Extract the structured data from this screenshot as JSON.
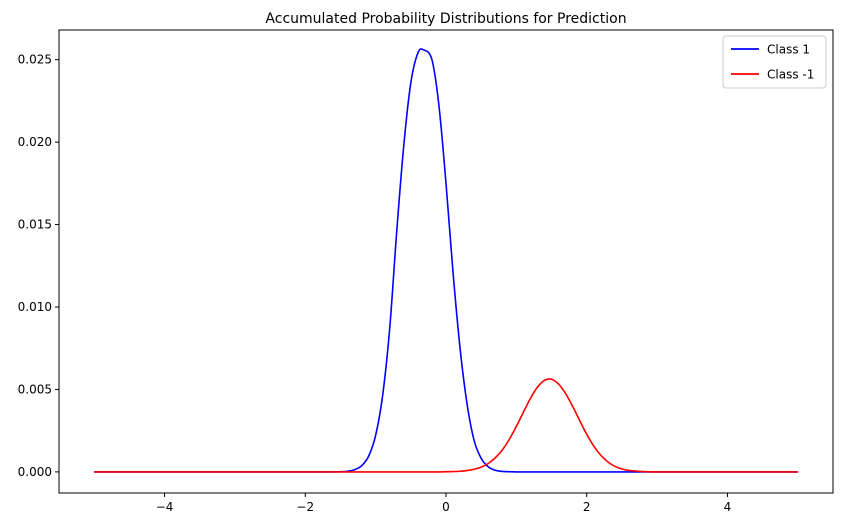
{
  "chart_data": {
    "type": "line",
    "title": "Accumulated Probability Distributions for Prediction",
    "xlabel": "",
    "ylabel": "",
    "xlim": [
      -5.5,
      5.5
    ],
    "ylim": [
      -0.00128,
      0.0268
    ],
    "x_ticks": [
      -4,
      -2,
      0,
      2,
      4
    ],
    "x_tick_labels": [
      "−4",
      "−2",
      "0",
      "2",
      "4"
    ],
    "y_ticks": [
      0.0,
      0.005,
      0.01,
      0.015,
      0.02,
      0.025
    ],
    "y_tick_labels": [
      "0.000",
      "0.005",
      "0.010",
      "0.015",
      "0.020",
      "0.025"
    ],
    "grid": false,
    "legend_position": "top-right",
    "x": [
      -5.0,
      -4.5,
      -4.0,
      -3.5,
      -3.0,
      -2.5,
      -2.0,
      -1.8,
      -1.6,
      -1.5,
      -1.4,
      -1.3,
      -1.2,
      -1.1,
      -1.0,
      -0.9,
      -0.8,
      -0.7,
      -0.6,
      -0.5,
      -0.4,
      -0.32,
      -0.2,
      -0.1,
      0.0,
      0.1,
      0.2,
      0.3,
      0.4,
      0.5,
      0.6,
      0.7,
      0.8,
      0.9,
      1.0,
      1.1,
      1.2,
      1.3,
      1.4,
      1.5,
      1.6,
      1.7,
      1.8,
      1.9,
      2.0,
      2.1,
      2.2,
      2.3,
      2.4,
      2.5,
      2.6,
      2.8,
      3.0,
      3.5,
      4.0,
      4.5,
      5.0
    ],
    "series": [
      {
        "name": "Class 1",
        "color": "#0000ff",
        "values": [
          0,
          0,
          0,
          0,
          0,
          0,
          0,
          0,
          0,
          1e-05,
          4e-05,
          0.00013,
          0.00037,
          0.00095,
          0.00222,
          0.00465,
          0.0087,
          0.0146,
          0.0198,
          0.0236,
          0.0254,
          0.0256,
          0.025,
          0.0222,
          0.0175,
          0.0121,
          0.0075,
          0.0041,
          0.0019,
          0.00082,
          0.00031,
          0.0001,
          3e-05,
          1e-05,
          0,
          0,
          0,
          0,
          0,
          0,
          0,
          0,
          0,
          0,
          0,
          0,
          0,
          0,
          0,
          0,
          0,
          0,
          0,
          0,
          0,
          0,
          0
        ]
      },
      {
        "name": "Class -1",
        "color": "#ff0000",
        "values": [
          0,
          0,
          0,
          0,
          0,
          0,
          0,
          0,
          0,
          0,
          0,
          0,
          0,
          0,
          0,
          0,
          0,
          0,
          0,
          0,
          0,
          0,
          0,
          0,
          1e-05,
          2e-05,
          4e-05,
          8e-05,
          0.00016,
          0.00029,
          0.00051,
          0.00085,
          0.00133,
          0.00198,
          0.00276,
          0.00362,
          0.00446,
          0.00514,
          0.00555,
          0.00562,
          0.00533,
          0.00475,
          0.00397,
          0.00311,
          0.00228,
          0.00157,
          0.00101,
          0.00061,
          0.00034,
          0.00018,
          9e-05,
          2e-05,
          0,
          0,
          0,
          0,
          0
        ]
      }
    ]
  }
}
